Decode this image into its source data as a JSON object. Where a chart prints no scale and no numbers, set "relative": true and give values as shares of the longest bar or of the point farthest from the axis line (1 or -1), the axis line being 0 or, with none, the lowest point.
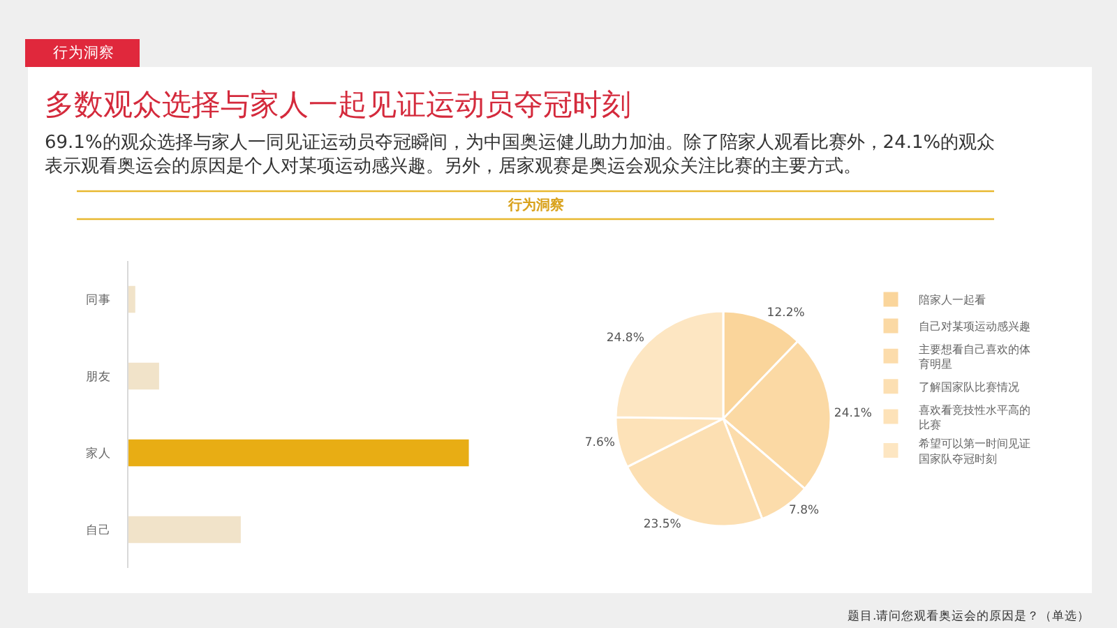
{
  "chart_data": [
    {
      "type": "bar",
      "orientation": "horizontal",
      "relative": true,
      "title": "多数观众选择与家人一起见证运动员夺冠时刻",
      "subtitle": "69.1%的观众选择与家人一同见证运动员夺冠瞬间，为中国奥运健儿助力加油。除了陪家人观看比赛外，24.1%的观众表示观看奥运会的原因是个人对某项运动感兴趣。另外，居家观赛是奥运会观众关注比赛的主要方式。",
      "annotations": [
        "行为洞察",
        "行为洞察"
      ],
      "categories": [
        "同事",
        "朋友",
        "家人",
        "自己"
      ],
      "values": [
        0.02,
        0.09,
        1,
        0.33
      ],
      "colors": [
        "#f1e3c9",
        "#f1e3c9",
        "#e8ad14",
        "#f1e3c9"
      ]
    },
    {
      "type": "pie",
      "categories": [
        "陪家人一起看",
        "自己对某项运动感兴趣",
        "主要想看自己喜欢的体育明星",
        "了解国家队比赛情况",
        "喜欢看竞技性水平高的比赛",
        "希望可以第一时间见证国家队夺冠时刻"
      ],
      "values": [
        12.2,
        24.1,
        7.8,
        23.5,
        7.6,
        24.8
      ],
      "value_labels": [
        "12.2%",
        "24.1%",
        "7.8%",
        "23.5%",
        "7.6%",
        "24.8%"
      ],
      "colors": [
        "#fad59b",
        "#fbd9a4",
        "#fcdcab",
        "#fcdfb2",
        "#fde2b8",
        "#fde6c2"
      ],
      "legend": "right",
      "annotations": [
        "题目.请问您观看奥运会的原因是？（单选）"
      ]
    }
  ]
}
